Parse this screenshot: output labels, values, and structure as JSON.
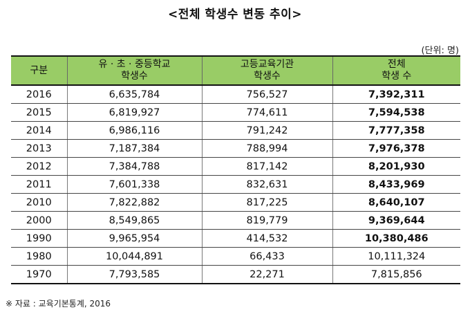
{
  "title": "<전체 학생수 변동 추이>",
  "unit": "(단위: 명)",
  "table": {
    "headers": [
      [
        "구분"
      ],
      [
        "유 · 초 · 중등학교",
        "학생수"
      ],
      [
        "고등교육기관",
        "학생수"
      ],
      [
        "전체",
        "학생 수"
      ]
    ],
    "rows": [
      {
        "year": "2016",
        "school": "6,635,784",
        "higher": "756,527",
        "total": "7,392,311",
        "bold": true
      },
      {
        "year": "2015",
        "school": "6,819,927",
        "higher": "774,611",
        "total": "7,594,538",
        "bold": true
      },
      {
        "year": "2014",
        "school": "6,986,116",
        "higher": "791,242",
        "total": "7,777,358",
        "bold": true
      },
      {
        "year": "2013",
        "school": "7,187,384",
        "higher": "788,994",
        "total": "7,976,378",
        "bold": true
      },
      {
        "year": "2012",
        "school": "7,384,788",
        "higher": "817,142",
        "total": "8,201,930",
        "bold": true
      },
      {
        "year": "2011",
        "school": "7,601,338",
        "higher": "832,631",
        "total": "8,433,969",
        "bold": true
      },
      {
        "year": "2010",
        "school": "7,822,882",
        "higher": "817,225",
        "total": "8,640,107",
        "bold": true
      },
      {
        "year": "2000",
        "school": "8,549,865",
        "higher": "819,779",
        "total": "9,369,644",
        "bold": true
      },
      {
        "year": "1990",
        "school": "9,965,954",
        "higher": "414,532",
        "total": "10,380,486",
        "bold": true
      },
      {
        "year": "1980",
        "school": "10,044,891",
        "higher": "66,433",
        "total": "10,111,324",
        "bold": false
      },
      {
        "year": "1970",
        "school": "7,793,585",
        "higher": "22,271",
        "total": "7,815,856",
        "bold": false
      }
    ]
  },
  "source": "※ 자료 : 교육기본통계, 2016",
  "colors": {
    "header_bg": "#99cc66"
  }
}
